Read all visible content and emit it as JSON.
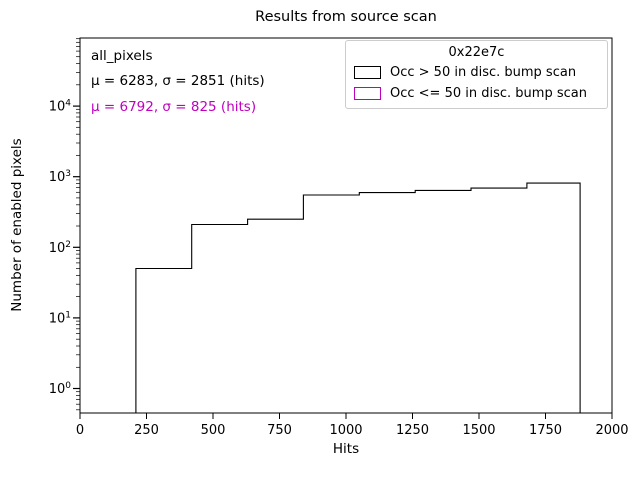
{
  "window": {
    "background": "#ffffff"
  },
  "chart": {
    "title": "Results from source scan",
    "xlabel": "Hits",
    "ylabel": "Number of enabled pixels"
  },
  "annotations": {
    "dataset": "all_pixels",
    "stats_black": "μ = 6283, σ = 2851 (hits)",
    "stats_magenta": "μ = 6792, σ = 825 (hits)"
  },
  "legend": {
    "title": "0x22e7c",
    "entries": [
      {
        "label": "Occ > 50 in disc. bump scan",
        "color": "#000000"
      },
      {
        "label": "Occ <= 50 in disc. bump scan",
        "color": "#bf00bf"
      }
    ]
  },
  "colors": {
    "foreground": "#000000",
    "magenta": "#bf00bf",
    "legend_border": "#cccccc"
  },
  "chart_data": {
    "type": "bar",
    "subtype": "step-histogram",
    "title": "Results from source scan",
    "xlabel": "Hits",
    "ylabel": "Number of enabled pixels",
    "x_scale": "linear",
    "y_scale": "log",
    "xlim": [
      0,
      2000
    ],
    "ylim": [
      0.45,
      92000
    ],
    "x_ticks": [
      0,
      250,
      500,
      750,
      1000,
      1250,
      1500,
      1750,
      2000
    ],
    "y_tick_exponents": [
      0,
      1,
      2,
      3,
      4
    ],
    "grid": false,
    "legend_position": "upper right",
    "series": [
      {
        "name": "Occ > 50 in disc. bump scan",
        "color": "#000000",
        "bin_edges": [
          210,
          420,
          630,
          840,
          1050,
          1260,
          1470,
          1680,
          1880
        ],
        "counts": [
          50,
          210,
          250,
          550,
          595,
          640,
          690,
          810
        ]
      },
      {
        "name": "Occ <= 50 in disc. bump scan",
        "color": "#bf00bf",
        "bin_edges": [],
        "counts": []
      }
    ]
  }
}
